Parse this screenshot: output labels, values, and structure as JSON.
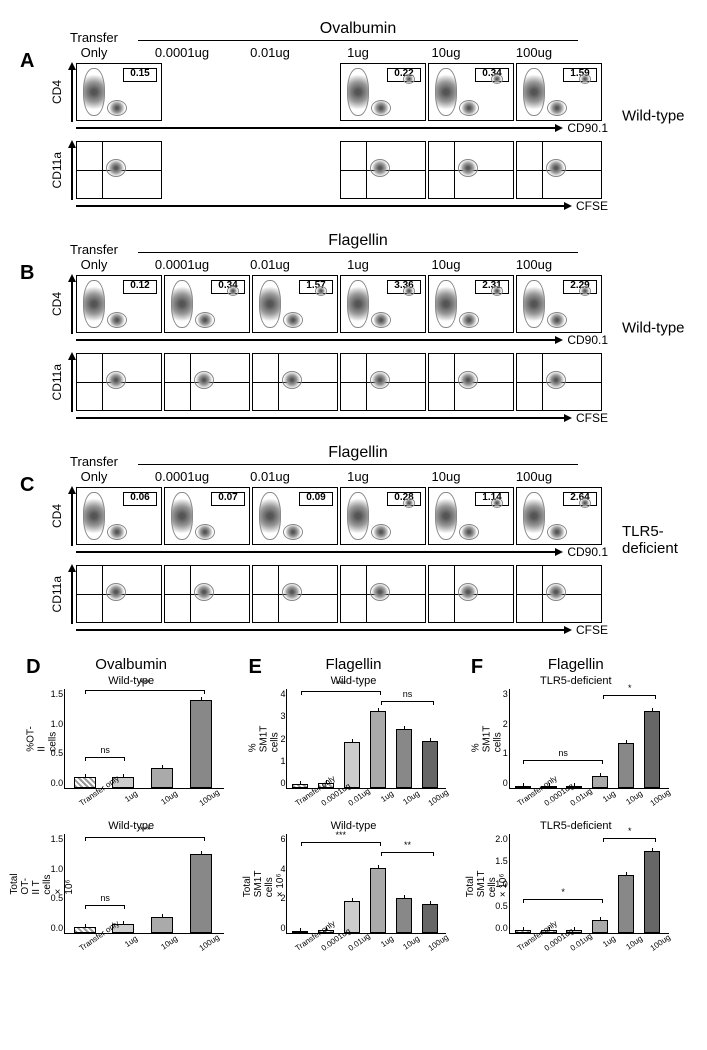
{
  "panels": {
    "A": {
      "letter": "A",
      "antigen": "Ovalbumin",
      "genotype": "Wild-type",
      "transfer_only_label": "Transfer\nOnly",
      "doses": [
        "0.0001ug",
        "0.01ug",
        "1ug",
        "10ug",
        "100ug"
      ],
      "row1_y": "CD4",
      "row1_x": "CD90.1",
      "row2_y": "CD11a",
      "row2_x": "CFSE",
      "gate_values": [
        "0.15",
        "",
        "",
        "0.22",
        "0.34",
        "1.59"
      ],
      "plots_present": [
        true,
        false,
        false,
        true,
        true,
        true
      ]
    },
    "B": {
      "letter": "B",
      "antigen": "Flagellin",
      "genotype": "Wild-type",
      "transfer_only_label": "Transfer\nOnly",
      "doses": [
        "0.0001ug",
        "0.01ug",
        "1ug",
        "10ug",
        "100ug"
      ],
      "row1_y": "CD4",
      "row1_x": "CD90.1",
      "row2_y": "CD11a",
      "row2_x": "CFSE",
      "gate_values": [
        "0.12",
        "0.34",
        "1.57",
        "3.36",
        "2.31",
        "2.29"
      ],
      "plots_present": [
        true,
        true,
        true,
        true,
        true,
        true
      ]
    },
    "C": {
      "letter": "C",
      "antigen": "Flagellin",
      "genotype": "TLR5-deficient",
      "transfer_only_label": "Transfer\nOnly",
      "doses": [
        "0.0001ug",
        "0.01ug",
        "1ug",
        "10ug",
        "100ug"
      ],
      "row1_y": "CD4",
      "row1_x": "CD90.1",
      "row2_y": "CD11a",
      "row2_x": "CFSE",
      "gate_values": [
        "0.06",
        "0.07",
        "0.09",
        "0.28",
        "1.14",
        "2.64"
      ],
      "plots_present": [
        true,
        true,
        true,
        true,
        true,
        true
      ]
    }
  },
  "barcharts": {
    "D": {
      "letter": "D",
      "title": "Ovalbumin",
      "subtitle": "Wild-type",
      "top": {
        "y_label": "%OT-II cells",
        "y_ticks": [
          "1.5",
          "1.0",
          "0.5",
          "0.0"
        ],
        "x_labels": [
          "Transfer only",
          "1ug",
          "10ug",
          "100ug"
        ],
        "values": [
          0.18,
          0.18,
          0.32,
          1.42
        ],
        "bar_styles": [
          "bar-hatch",
          "bar-light",
          "bar-med",
          "bar-dark"
        ],
        "ymax": 1.6,
        "sig": [
          {
            "from": 0,
            "to": 1,
            "label": "ns",
            "y": 0.5
          },
          {
            "from": 0,
            "to": 3,
            "label": "***",
            "y": 1.58
          }
        ]
      },
      "bottom": {
        "y_label": "Total OT-II T cells\n× 10⁶",
        "y_ticks": [
          "1.5",
          "1.0",
          "0.5",
          "0.0"
        ],
        "x_labels": [
          "Transfer only",
          "1ug",
          "10ug",
          "100ug"
        ],
        "values": [
          0.1,
          0.15,
          0.26,
          1.27
        ],
        "bar_styles": [
          "bar-hatch",
          "bar-light",
          "bar-med",
          "bar-dark"
        ],
        "ymax": 1.6,
        "sig": [
          {
            "from": 0,
            "to": 1,
            "label": "ns",
            "y": 0.45
          },
          {
            "from": 0,
            "to": 3,
            "label": "***",
            "y": 1.55
          }
        ]
      }
    },
    "E": {
      "letter": "E",
      "title": "Flagellin",
      "subtitle": "Wild-type",
      "top": {
        "y_label": "% SM1T cells",
        "y_ticks": [
          "4",
          "3",
          "2",
          "1",
          "0"
        ],
        "x_labels": [
          "Transfer only",
          "0.0001ug",
          "0.01ug",
          "1ug",
          "10ug",
          "100ug"
        ],
        "values": [
          0.15,
          0.22,
          1.85,
          3.1,
          2.4,
          1.9
        ],
        "bar_styles": [
          "bar-hatch",
          "bar-hatch",
          "bar-light",
          "bar-med",
          "bar-dark",
          "bar-darker"
        ],
        "ymax": 4,
        "sig": [
          {
            "from": 0,
            "to": 3,
            "label": "***",
            "y": 3.9
          },
          {
            "from": 3,
            "to": 5,
            "label": "ns",
            "y": 3.5
          }
        ]
      },
      "bottom": {
        "y_label": "Total SM1T cells\n× 10⁶",
        "y_ticks": [
          "6",
          "4",
          "2",
          "0"
        ],
        "x_labels": [
          "Transfer only",
          "0.0001ug",
          "0.01ug",
          "1ug",
          "10ug",
          "100ug"
        ],
        "values": [
          0.12,
          0.2,
          2.1,
          4.3,
          2.3,
          1.9
        ],
        "bar_styles": [
          "bar-hatch",
          "bar-hatch",
          "bar-light",
          "bar-med",
          "bar-dark",
          "bar-darker"
        ],
        "ymax": 6.5,
        "sig": [
          {
            "from": 0,
            "to": 3,
            "label": "***",
            "y": 6.0
          },
          {
            "from": 3,
            "to": 5,
            "label": "**",
            "y": 5.3
          }
        ]
      }
    },
    "F": {
      "letter": "F",
      "title": "Flagellin",
      "subtitle": "TLR5-deficient",
      "top": {
        "y_label": "% SM1T cells",
        "y_ticks": [
          "3",
          "2",
          "1",
          "0"
        ],
        "x_labels": [
          "Transfer only",
          "0.0001ug",
          "0.01ug",
          "1ug",
          "10ug",
          "100ug"
        ],
        "values": [
          0.06,
          0.07,
          0.08,
          0.4,
          1.45,
          2.5
        ],
        "bar_styles": [
          "bar-hatch",
          "bar-hatch",
          "bar-light",
          "bar-med",
          "bar-dark",
          "bar-darker"
        ],
        "ymax": 3.2,
        "sig": [
          {
            "from": 0,
            "to": 3,
            "label": "ns",
            "y": 0.9
          },
          {
            "from": 3,
            "to": 5,
            "label": "*",
            "y": 3.0
          }
        ]
      },
      "bottom": {
        "y_label": "Total SM1T cells\n× 10⁶",
        "y_ticks": [
          "2.0",
          "1.5",
          "1.0",
          "0.5",
          "0.0"
        ],
        "x_labels": [
          "Transfer only",
          "0.0001ug",
          "0.01ug",
          "1ug",
          "10ug",
          "100ug"
        ],
        "values": [
          0.06,
          0.07,
          0.07,
          0.3,
          1.35,
          1.9
        ],
        "bar_styles": [
          "bar-hatch",
          "bar-hatch",
          "bar-light",
          "bar-med",
          "bar-dark",
          "bar-darker"
        ],
        "ymax": 2.3,
        "sig": [
          {
            "from": 0,
            "to": 3,
            "label": "*",
            "y": 0.8
          },
          {
            "from": 3,
            "to": 5,
            "label": "*",
            "y": 2.2
          }
        ]
      }
    }
  },
  "colors": {
    "background": "#ffffff",
    "axis": "#000000",
    "bar_hatch": "#999999",
    "bar_light": "#cccccc",
    "bar_med": "#aaaaaa",
    "bar_dark": "#888888",
    "bar_darker": "#666666"
  },
  "fonts": {
    "panel_letter_pt": 20,
    "header_pt": 16,
    "dose_pt": 13,
    "axis_label_pt": 12,
    "gate_value_pt": 10,
    "barchart_title_pt": 15,
    "barchart_subtitle_pt": 11,
    "tick_pt": 9,
    "x_tick_pt": 8
  }
}
